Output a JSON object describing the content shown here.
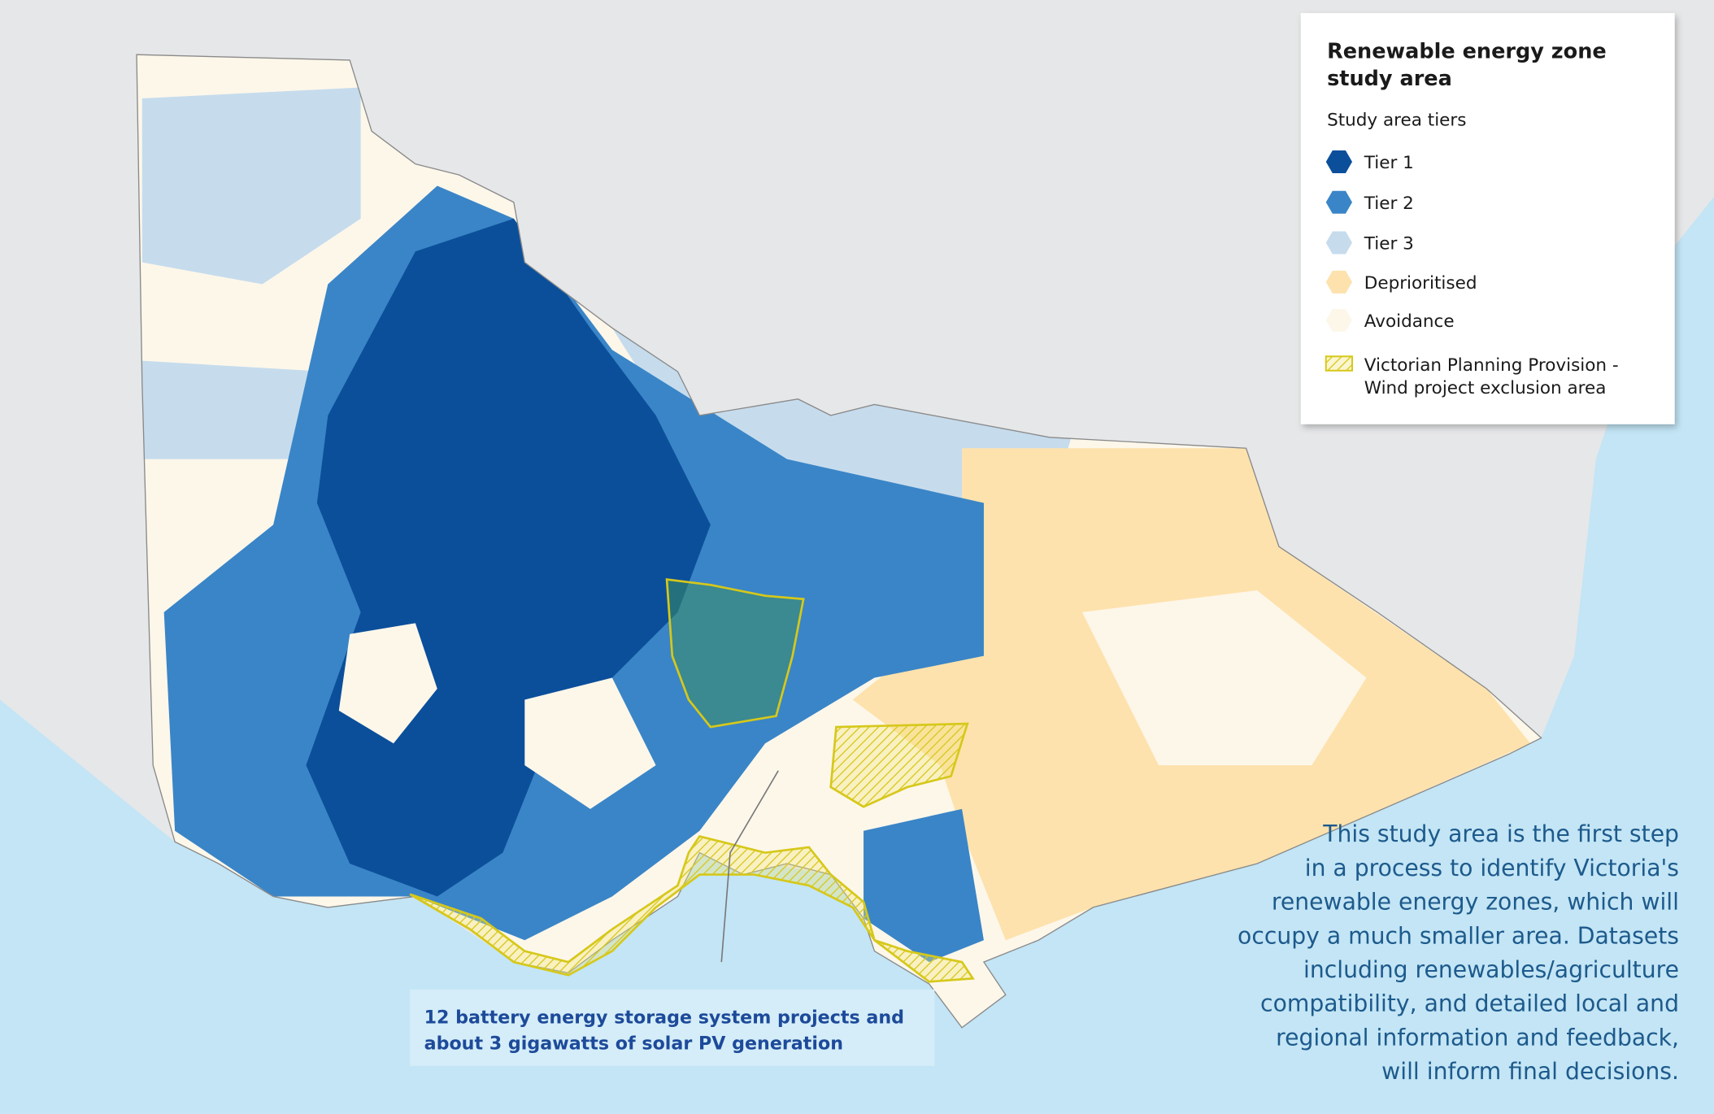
{
  "legend": {
    "title_lines": [
      "Renewable energy zone",
      "study area"
    ],
    "subtitle": "Study area tiers",
    "items": [
      {
        "label_lines": [
          "Tier 1"
        ]
      },
      {
        "label_lines": [
          "Tier 2"
        ]
      },
      {
        "label_lines": [
          "Tier 3"
        ]
      },
      {
        "label_lines": [
          "Deprioritised"
        ]
      },
      {
        "label_lines": [
          "Avoidance"
        ]
      },
      {
        "label_lines": [
          "Victorian Planning Provision -",
          "Wind project exclusion area"
        ]
      }
    ]
  },
  "callout": {
    "lines": [
      "12 battery energy storage system projects and",
      "about 3 gigawatts of solar PV generation"
    ]
  },
  "note": {
    "lines": [
      "This study area is the first step",
      "in a process to identify Victoria's",
      "renewable energy zones, which will",
      "occupy a much smaller area. Datasets",
      "including renewables/agriculture",
      "compatibility, and detailed local and",
      "regional information and feedback,",
      "will inform final decisions."
    ]
  }
}
